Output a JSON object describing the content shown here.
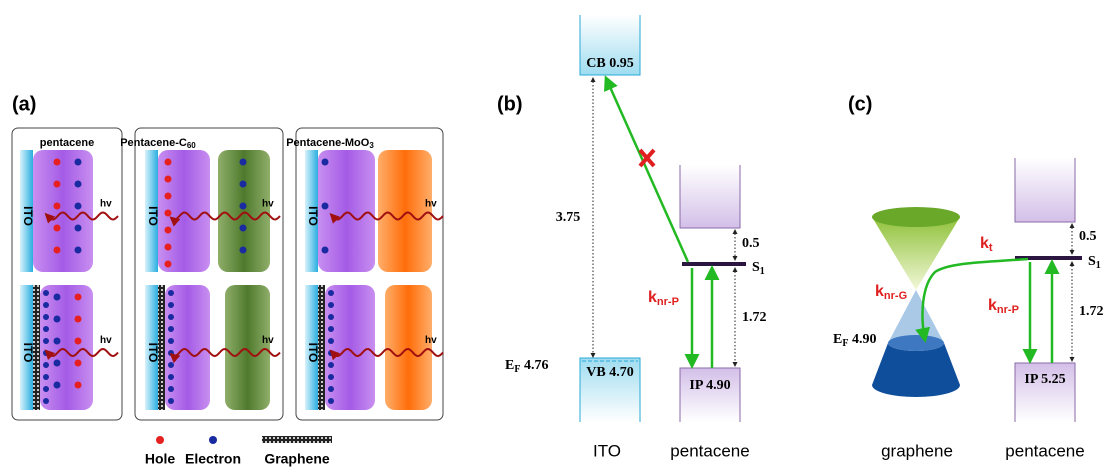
{
  "panel_a": {
    "label": "(a)",
    "boxes": [
      {
        "title": {
          "text": "pentacene"
        },
        "top_electrode": "ITO",
        "bottom_electrode": "ITO",
        "light_top": "hv",
        "light_bottom": "hv"
      },
      {
        "title": {
          "text": "Pentacene-C",
          "sub": "60"
        },
        "top_electrode": "ITO",
        "bottom_electrode": "ITO",
        "light_top": "hv",
        "light_bottom": "hv"
      },
      {
        "title": {
          "text": "Pentacene-MoO",
          "sub": "3"
        },
        "top_electrode": "ITO",
        "bottom_electrode": "ITO",
        "light_top": "hv",
        "light_bottom": "hv"
      }
    ],
    "legend": [
      "Hole",
      "Electron",
      "Graphene"
    ]
  },
  "panel_b": {
    "label": "(b)",
    "cb": "CB 0.95",
    "vb": "VB 4.70",
    "ef": {
      "text": "E",
      "sub": "F",
      "rest": " 4.76"
    },
    "gap": "3.75",
    "s1_gap": "0.5",
    "s1": {
      "text": "S",
      "sub": "1"
    },
    "rate": {
      "text": "k",
      "sub": "nr-P"
    },
    "s1_ip": "1.72",
    "ip": "IP 4.90",
    "x_labels": [
      "ITO",
      "pentacene"
    ]
  },
  "panel_c": {
    "label": "(c)",
    "kt": {
      "text": "k",
      "sub": "t"
    },
    "s1_gap": "0.5",
    "s1": {
      "text": "S",
      "sub": "1"
    },
    "rate_g": {
      "text": "k",
      "sub": "nr-G"
    },
    "rate_p": {
      "text": "k",
      "sub": "nr-P"
    },
    "s1_ip": "1.72",
    "ef": {
      "text": "E",
      "sub": "F",
      "rest": " 4.90"
    },
    "ip": "IP 5.25",
    "x_labels": [
      "graphene",
      "pentacene"
    ]
  }
}
